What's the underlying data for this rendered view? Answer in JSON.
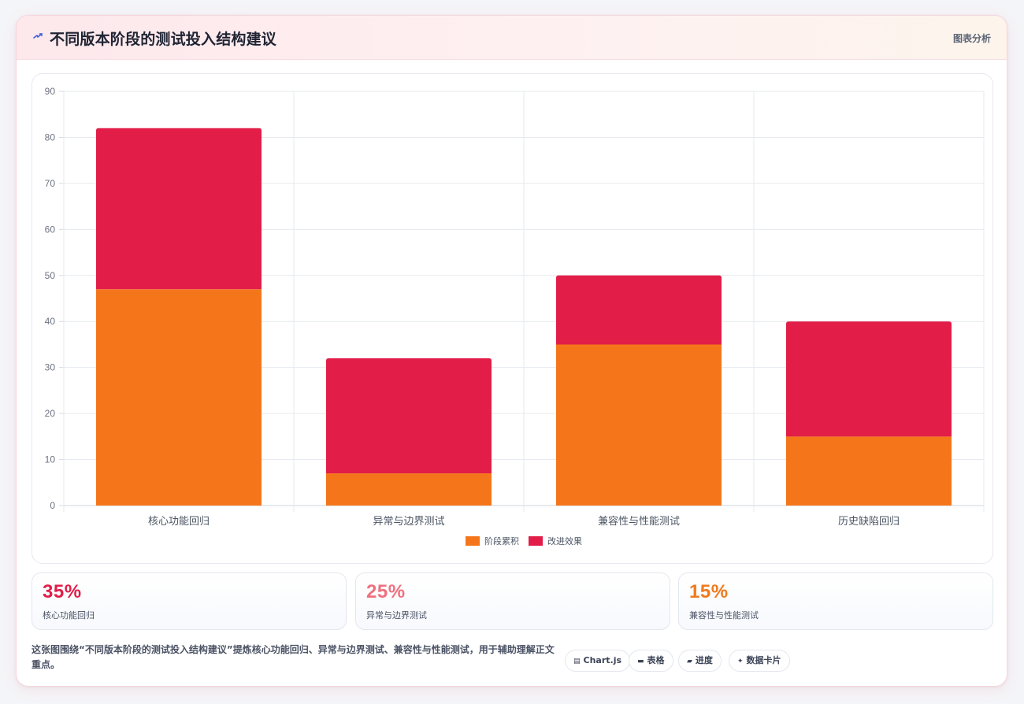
{
  "header": {
    "title": "不同版本阶段的测试投入结构建议",
    "tag": "图表分析",
    "icon": "lightning-icon",
    "accent": "#3b5bdb"
  },
  "chart_data": {
    "type": "bar",
    "stacked": true,
    "categories": [
      "核心功能回归",
      "异常与边界测试",
      "兼容性与性能测试",
      "历史缺陷回归"
    ],
    "series": [
      {
        "name": "阶段累积",
        "values": [
          47,
          7,
          35,
          15
        ],
        "color": "#f5761a"
      },
      {
        "name": "改进效果",
        "values": [
          35,
          25,
          15,
          25
        ],
        "color": "#e11d48"
      }
    ],
    "ylim": [
      0,
      90
    ],
    "yticks": [
      0,
      10,
      20,
      30,
      40,
      50,
      60,
      70,
      80,
      90
    ],
    "grid": true,
    "legend": "bottom"
  },
  "stats": [
    {
      "value": "35%",
      "label": "核心功能回归",
      "color": "#e11d48"
    },
    {
      "value": "25%",
      "label": "异常与边界测试",
      "color": "#f0707f"
    },
    {
      "value": "15%",
      "label": "兼容性与性能测试",
      "color": "#f07a1c"
    }
  ],
  "description": "这张图围绕“不同版本阶段的测试投入结构建议”提炼核心功能回归、异常与边界测试、兼容性与性能测试，用于辅助理解正文重点。",
  "pills": [
    {
      "label": "Chart.js",
      "icon": "chart-icon"
    },
    {
      "label": "表格",
      "icon": "table-icon"
    },
    {
      "label": "进度",
      "icon": "progress-icon"
    },
    {
      "label": "数据卡片",
      "icon": "sparkle-icon"
    }
  ]
}
